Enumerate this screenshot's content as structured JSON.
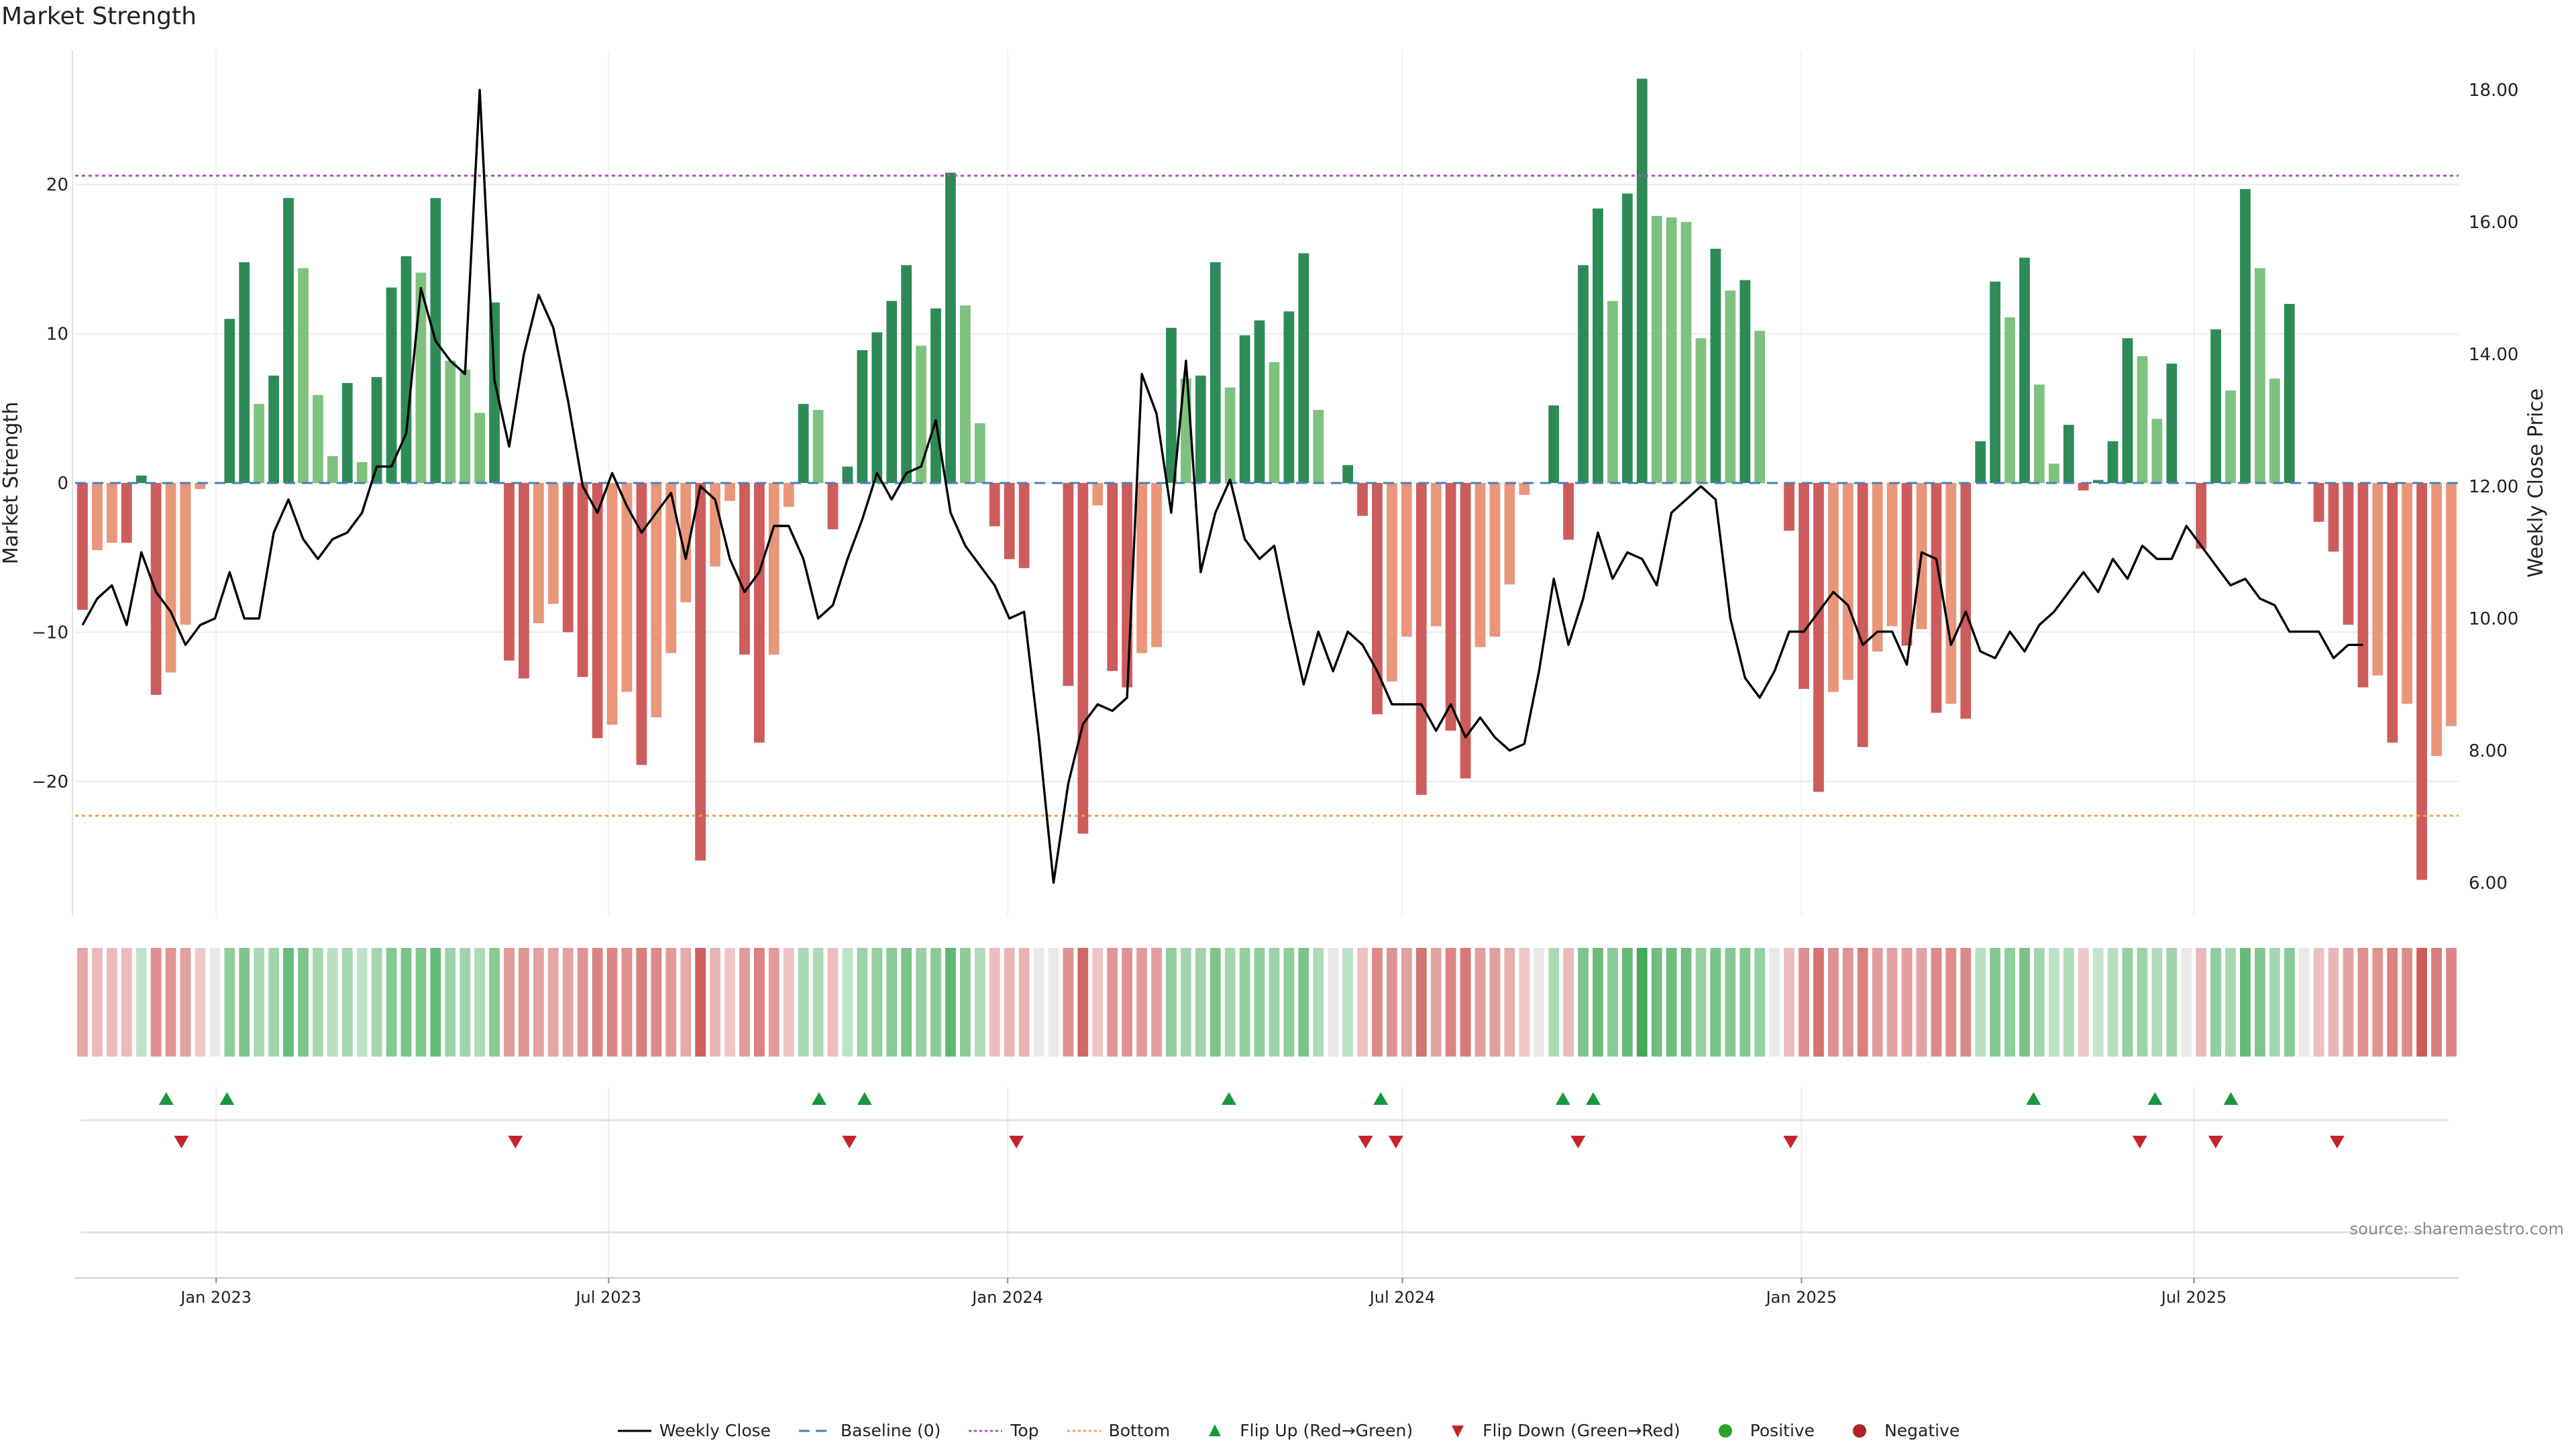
{
  "chart_data": {
    "type": "bar+line",
    "title": "Market Strength",
    "source": "source: sharemaestro.com",
    "y_left": {
      "label": "Market Strength",
      "ylim": [
        -29,
        29
      ],
      "ticks": [
        -20,
        -10,
        0,
        10,
        20
      ],
      "tick_labels": [
        "−20",
        "−10",
        "0",
        "10",
        "20"
      ]
    },
    "y_right": {
      "label": "Weekly Close Price",
      "ylim": [
        5.5,
        18.6
      ],
      "ticks": [
        6,
        8,
        10,
        12,
        14,
        16,
        18
      ],
      "tick_labels": [
        "6.00",
        "8.00",
        "10.00",
        "12.00",
        "14.00",
        "16.00",
        "18.00"
      ]
    },
    "x_axis": {
      "start": "2022-10-28",
      "end": "2025-10-31",
      "tick_dates": [
        "2023-01-01",
        "2023-07-01",
        "2024-01-01",
        "2024-07-01",
        "2025-01-01",
        "2025-07-01"
      ],
      "tick_labels": [
        "Jan 2023",
        "Jul 2023",
        "Jan 2024",
        "Jul 2024",
        "Jan 2025",
        "Jul 2025"
      ]
    },
    "top_threshold": 20.6,
    "bottom_threshold": -22.3,
    "strength": [
      -8.5,
      -4.5,
      -4,
      -4,
      0.5,
      -14.2,
      -12.7,
      -9.5,
      -0.4,
      0,
      11,
      14.8,
      5.3,
      7.2,
      19.1,
      14.4,
      5.9,
      1.8,
      6.7,
      1.4,
      7.1,
      13.1,
      15.2,
      14.1,
      19.1,
      8.2,
      7.6,
      4.7,
      12.1,
      -11.9,
      -13.1,
      -9.4,
      -8.1,
      -10,
      -13,
      -17.1,
      -16.2,
      -14,
      -18.9,
      -15.7,
      -11.4,
      -8,
      -25.3,
      -5.6,
      -1.2,
      -11.5,
      -17.4,
      -11.5,
      -1.6,
      5.3,
      4.9,
      -3.1,
      1.1,
      8.9,
      10.1,
      12.2,
      14.6,
      9.2,
      11.7,
      20.8,
      11.9,
      4,
      -2.9,
      -5.1,
      -5.7,
      0,
      0,
      -13.6,
      -23.5,
      -1.5,
      -12.6,
      -13.7,
      -11.4,
      -11,
      10.4,
      7,
      7.2,
      14.8,
      6.4,
      9.9,
      10.9,
      8.1,
      11.5,
      15.4,
      4.9,
      0,
      1.2,
      -2.2,
      -15.5,
      -13.3,
      -10.3,
      -20.9,
      -9.6,
      -16.6,
      -19.8,
      -11,
      -10.3,
      -6.8,
      -0.8,
      0,
      5.2,
      -3.8,
      14.6,
      18.4,
      12.2,
      19.4,
      27.1,
      17.9,
      17.8,
      17.5,
      9.7,
      15.7,
      12.9,
      13.6,
      10.2,
      0,
      -3.2,
      -13.8,
      -20.7,
      -14,
      -13.2,
      -17.7,
      -11.3,
      -9.6,
      -10.9,
      -9.8,
      -15.4,
      -14.8,
      -15.8,
      2.8,
      13.5,
      11.1,
      15.1,
      6.6,
      1.3,
      3.9,
      -0.5,
      0.2,
      2.8,
      9.7,
      8.5,
      4.3,
      8,
      0,
      -4.4,
      10.3,
      6.2,
      19.7,
      14.4,
      7,
      12,
      0,
      -2.6,
      -4.6,
      -9.5,
      -13.7,
      -12.9,
      -17.4,
      -14.8,
      -26.6,
      -18.3,
      -16.3
    ],
    "weekly_close": [
      9.9,
      10.3,
      10.5,
      9.9,
      11.0,
      10.4,
      10.1,
      9.6,
      9.9,
      10.0,
      10.7,
      10.0,
      10.0,
      11.3,
      11.8,
      11.2,
      10.9,
      11.2,
      11.3,
      11.6,
      12.3,
      12.3,
      12.8,
      15.0,
      14.2,
      13.9,
      13.7,
      18.0,
      13.6,
      12.6,
      14.0,
      14.9,
      14.4,
      13.3,
      12.0,
      11.6,
      12.2,
      11.7,
      11.3,
      11.6,
      11.9,
      10.9,
      12.0,
      11.8,
      10.9,
      10.4,
      10.7,
      11.4,
      11.4,
      10.9,
      10.0,
      10.2,
      10.9,
      11.5,
      12.2,
      11.8,
      12.2,
      12.3,
      13.0,
      11.6,
      11.1,
      10.8,
      10.5,
      10.0,
      10.1,
      8.2,
      6.0,
      7.5,
      8.4,
      8.7,
      8.6,
      8.8,
      13.7,
      13.1,
      11.6,
      13.9,
      10.7,
      11.6,
      12.1,
      11.2,
      10.9,
      11.1,
      10.0,
      9.0,
      9.8,
      9.2,
      9.8,
      9.6,
      9.2,
      8.7,
      8.7,
      8.7,
      8.3,
      8.7,
      8.2,
      8.5,
      8.2,
      8.0,
      8.1,
      9.2,
      10.6,
      9.6,
      10.3,
      11.3,
      10.6,
      11.0,
      10.9,
      10.5,
      11.6,
      11.8,
      12.0,
      11.8,
      10.0,
      9.1,
      8.8,
      9.2,
      9.8,
      9.8,
      10.1,
      10.4,
      10.2,
      9.6,
      9.8,
      9.8,
      9.3,
      11.0,
      10.9,
      9.6,
      10.1,
      9.5,
      9.4,
      9.8,
      9.5,
      9.9,
      10.1,
      10.4,
      10.7,
      10.4,
      10.9,
      10.6,
      11.1,
      10.9,
      10.9,
      11.4,
      11.1,
      10.8,
      10.5,
      10.6,
      10.3,
      10.2,
      9.8,
      9.8,
      9.8,
      9.4,
      9.6,
      9.6
    ],
    "flip_up_dates": [
      "2022-12-09",
      "2023-01-06",
      "2023-10-06",
      "2023-10-27",
      "2024-04-12",
      "2024-06-21",
      "2024-09-13",
      "2024-09-27",
      "2025-04-18",
      "2025-06-13",
      "2025-07-18"
    ],
    "flip_down_dates": [
      "2022-12-16",
      "2023-05-19",
      "2023-10-20",
      "2024-01-05",
      "2024-06-14",
      "2024-06-28",
      "2024-09-20",
      "2024-12-27",
      "2025-06-06",
      "2025-07-11",
      "2025-09-05"
    ]
  },
  "legend": {
    "weekly_close": "Weekly Close",
    "baseline": "Baseline (0)",
    "top": "Top",
    "bottom": "Bottom",
    "flip_up": "Flip Up (Red→Green)",
    "flip_down": "Flip Down (Green→Red)",
    "positive": "Positive",
    "negative": "Negative"
  },
  "colors": {
    "strong_pos": "#2e8b57",
    "weak_pos": "#7fc17f",
    "strong_neg": "#cd5c5c",
    "weak_neg": "#e9967a",
    "price_line": "#000000",
    "top_line": "#b050c0",
    "bottom_line": "#f0a050",
    "baseline": "#4a7fb5",
    "flip_up": "#1a9641",
    "flip_down": "#c8232c",
    "positive_dot": "#2ca02c",
    "negative_dot": "#b22222"
  }
}
